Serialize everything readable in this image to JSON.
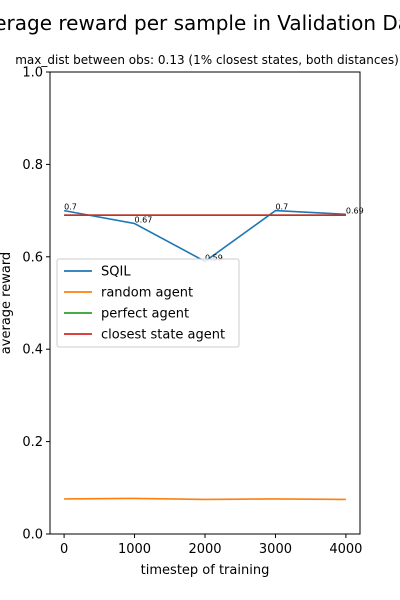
{
  "chart_data": {
    "type": "line",
    "title": "Average reward per sample in Validation Data",
    "subtitle": "max_dist between obs: 0.13 (1% closest states, both distances)",
    "xlabel": "timestep of training",
    "ylabel": "average reward",
    "xlim": [
      -200,
      4200
    ],
    "ylim": [
      0.0,
      1.0
    ],
    "xticks": [
      0,
      1000,
      2000,
      3000,
      4000
    ],
    "yticks": [
      0.0,
      0.2,
      0.4,
      0.6,
      0.8,
      1.0
    ],
    "xtick_labels": [
      "0",
      "1000",
      "2000",
      "3000",
      "4000"
    ],
    "ytick_labels": [
      "0.0",
      "0.2",
      "0.4",
      "0.6",
      "0.8",
      "1.0"
    ],
    "legend_position": "center-left",
    "grid": false,
    "series": [
      {
        "name": "SQIL",
        "color": "#1f77b4",
        "x": [
          0,
          1000,
          2000,
          3000,
          4000
        ],
        "y": [
          0.7,
          0.672,
          0.59,
          0.7,
          0.692
        ],
        "labels": [
          "0.7",
          "0.67",
          "0.59",
          "0.7",
          "0.69"
        ]
      },
      {
        "name": "random agent",
        "color": "#ff7f0e",
        "x": [
          0,
          1000,
          2000,
          3000,
          4000
        ],
        "y": [
          0.076,
          0.077,
          0.075,
          0.076,
          0.075
        ]
      },
      {
        "name": "perfect agent",
        "color": "#2ca02c",
        "x": [
          0,
          1000,
          2000,
          3000,
          4000
        ],
        "y": [
          0.69,
          0.69,
          0.69,
          0.69,
          0.69
        ]
      },
      {
        "name": "closest state agent",
        "color": "#d62728",
        "x": [
          0,
          1000,
          2000,
          3000,
          4000
        ],
        "y": [
          0.69,
          0.69,
          0.69,
          0.69,
          0.69
        ]
      }
    ]
  }
}
